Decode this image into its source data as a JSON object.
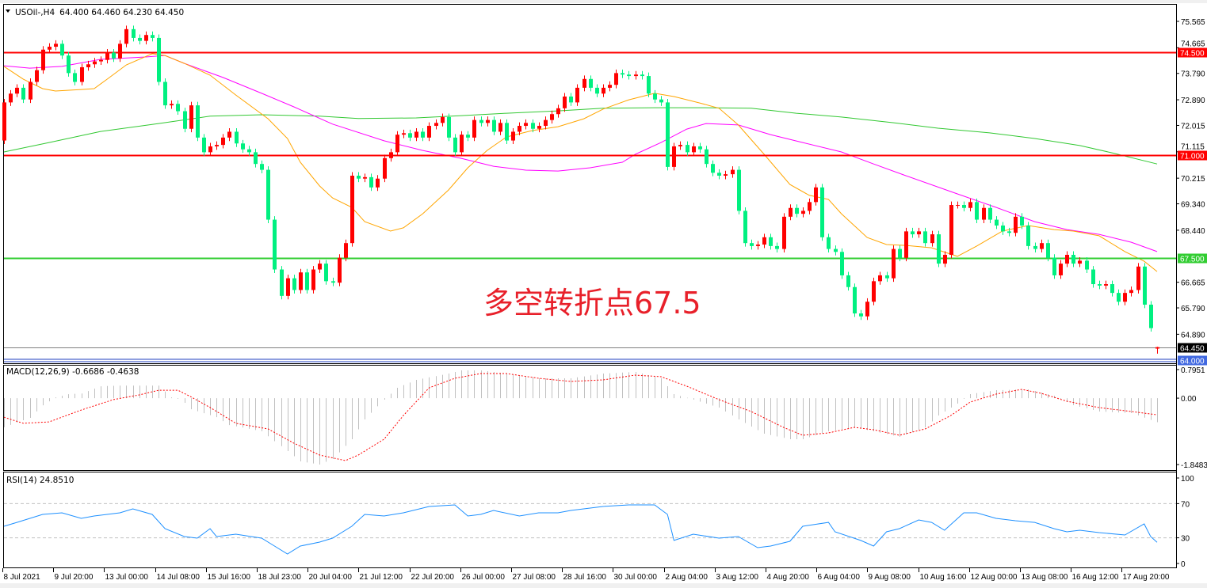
{
  "header": {
    "symbol": "USOil-,H4",
    "ohlc": "64.400 64.460 64.230 64.450"
  },
  "annotation": "多空转折点67.5",
  "colors": {
    "up": "#ff0000",
    "down": "#00f080",
    "ma_fast": "#ffa500",
    "ma_mid": "#ff00ff",
    "ma_slow": "#32c832",
    "macd_hist": "#c0c0c0",
    "macd_signal": "#ff0000",
    "rsi": "#1e90ff"
  },
  "price_axis": {
    "ticks": [
      "75.565",
      "74.665",
      "73.790",
      "72.890",
      "72.015",
      "71.115",
      "70.215",
      "69.340",
      "68.440",
      "66.665",
      "65.790",
      "64.890"
    ]
  },
  "levels": [
    {
      "price": 74.5,
      "label": "74.500",
      "color": "#ff0000"
    },
    {
      "price": 71.0,
      "label": "71.000",
      "color": "#ff0000"
    },
    {
      "price": 67.5,
      "label": "67.500",
      "color": "#32cd32"
    },
    {
      "price": 64.45,
      "label": "64.450",
      "color": "#000000",
      "line": "#808080"
    },
    {
      "price": 64.0,
      "label": "64.000",
      "color": "#4169e1"
    }
  ],
  "macd": {
    "label": "MACD(12,26,9) -0.6686 -0.4638",
    "ticks": [
      "0.7951",
      "0.00",
      "-1.8483"
    ]
  },
  "rsi": {
    "label": "RSI(14) 24.8510",
    "ticks": [
      "100",
      "70",
      "30",
      "0"
    ],
    "levels": [
      70,
      30
    ]
  },
  "time_axis": [
    "8 Jul 2021",
    "9 Jul 20:00",
    "13 Jul 00:00",
    "14 Jul 08:00",
    "15 Jul 16:00",
    "18 Jul 23:00",
    "20 Jul 04:00",
    "21 Jul 12:00",
    "22 Jul 20:00",
    "26 Jul 00:00",
    "27 Jul 08:00",
    "28 Jul 16:00",
    "30 Jul 00:00",
    "2 Aug 04:00",
    "3 Aug 12:00",
    "4 Aug 20:00",
    "6 Aug 04:00",
    "9 Aug 08:00",
    "10 Aug 16:00",
    "12 Aug 00:00",
    "13 Aug 08:00",
    "16 Aug 12:00",
    "17 Aug 20:00"
  ],
  "chart_data": {
    "type": "candlestick",
    "timeframe": "H4",
    "ylim": [
      63.9,
      75.9
    ],
    "first_open": 71.5,
    "last_bar": {
      "open": 64.4,
      "high": 64.46,
      "low": 64.23,
      "close": 64.45
    },
    "closes": [
      72.8,
      73.1,
      73.3,
      72.9,
      73.5,
      73.9,
      74.6,
      74.7,
      74.8,
      74.4,
      73.8,
      73.5,
      74.0,
      74.1,
      74.2,
      74.25,
      74.5,
      74.3,
      74.8,
      75.3,
      75.0,
      74.9,
      75.1,
      75.0,
      73.5,
      72.7,
      72.75,
      72.5,
      71.9,
      72.7,
      71.6,
      71.1,
      71.3,
      71.35,
      71.6,
      71.8,
      71.4,
      71.2,
      71.1,
      70.7,
      70.5,
      68.8,
      67.1,
      66.2,
      66.8,
      66.4,
      67.0,
      66.4,
      67.1,
      67.3,
      66.7,
      66.65,
      67.5,
      68.0,
      70.3,
      70.2,
      70.25,
      69.9,
      70.2,
      70.9,
      71.1,
      71.7,
      71.75,
      71.6,
      71.8,
      71.6,
      72.0,
      72.1,
      72.3,
      71.6,
      71.1,
      71.7,
      71.6,
      72.2,
      72.1,
      72.2,
      71.8,
      72.1,
      71.5,
      71.8,
      72.0,
      72.1,
      71.9,
      72.0,
      72.2,
      72.4,
      72.6,
      73.0,
      72.8,
      73.3,
      73.6,
      73.3,
      73.1,
      73.3,
      73.4,
      73.8,
      73.75,
      73.7,
      73.75,
      73.7,
      73.1,
      72.9,
      72.8,
      70.6,
      71.3,
      71.35,
      71.1,
      71.3,
      71.2,
      70.7,
      70.4,
      70.3,
      70.35,
      70.5,
      69.1,
      68.0,
      67.9,
      67.95,
      68.2,
      67.9,
      67.8,
      68.9,
      69.2,
      69.0,
      69.1,
      69.4,
      69.9,
      68.2,
      67.8,
      67.7,
      66.9,
      66.5,
      65.6,
      65.5,
      66.0,
      66.7,
      66.9,
      66.8,
      67.8,
      67.5,
      68.4,
      68.3,
      68.4,
      68.0,
      68.3,
      67.3,
      67.6,
      69.3,
      69.3,
      69.2,
      69.4,
      68.8,
      69.2,
      68.8,
      68.6,
      68.4,
      68.35,
      68.9,
      68.6,
      67.9,
      67.8,
      68.0,
      67.5,
      66.9,
      67.3,
      67.6,
      67.3,
      67.4,
      67.1,
      66.6,
      66.55,
      66.6,
      66.3,
      66.0,
      66.3,
      66.4,
      67.2,
      65.9,
      65.1,
      64.45
    ],
    "ma_fast": [
      [
        0,
        74.03
      ],
      [
        3,
        73.59
      ],
      [
        6,
        73.27
      ],
      [
        8,
        73.19
      ],
      [
        12,
        73.24
      ],
      [
        14,
        73.27
      ],
      [
        16,
        73.59
      ],
      [
        19,
        74.08
      ],
      [
        23,
        74.46
      ],
      [
        25,
        74.4
      ],
      [
        28,
        74.13
      ],
      [
        32,
        73.73
      ],
      [
        36,
        73.05
      ],
      [
        41,
        72.24
      ],
      [
        44,
        71.57
      ],
      [
        46,
        70.76
      ],
      [
        49,
        69.95
      ],
      [
        51,
        69.54
      ],
      [
        54,
        69.22
      ],
      [
        56,
        68.73
      ],
      [
        60,
        68.41
      ],
      [
        62,
        68.52
      ],
      [
        65,
        69.0
      ],
      [
        69,
        69.81
      ],
      [
        72,
        70.57
      ],
      [
        75,
        71.16
      ],
      [
        78,
        71.62
      ],
      [
        82,
        71.84
      ],
      [
        86,
        71.97
      ],
      [
        90,
        72.24
      ],
      [
        93,
        72.57
      ],
      [
        97,
        72.89
      ],
      [
        101,
        73.11
      ],
      [
        104,
        73.0
      ],
      [
        108,
        72.78
      ],
      [
        111,
        72.6
      ],
      [
        114,
        72.03
      ],
      [
        118,
        71.03
      ],
      [
        122,
        70.0
      ],
      [
        125,
        69.63
      ],
      [
        128,
        69.49
      ],
      [
        130,
        69.0
      ],
      [
        134,
        68.19
      ],
      [
        137,
        67.95
      ],
      [
        140,
        67.92
      ],
      [
        144,
        67.84
      ],
      [
        148,
        67.55
      ],
      [
        151,
        67.9
      ],
      [
        155,
        68.41
      ],
      [
        159,
        68.6
      ],
      [
        163,
        68.46
      ],
      [
        166,
        68.41
      ],
      [
        170,
        68.25
      ],
      [
        174,
        67.71
      ],
      [
        177,
        67.38
      ],
      [
        179,
        67.03
      ]
    ],
    "ma_mid": [
      [
        0,
        74.05
      ],
      [
        4,
        73.97
      ],
      [
        9,
        74.03
      ],
      [
        15,
        74.27
      ],
      [
        22,
        74.35
      ],
      [
        25,
        74.4
      ],
      [
        28,
        74.13
      ],
      [
        34,
        73.65
      ],
      [
        40,
        73.11
      ],
      [
        45,
        72.65
      ],
      [
        51,
        72.06
      ],
      [
        59,
        71.49
      ],
      [
        65,
        71.16
      ],
      [
        71,
        70.89
      ],
      [
        76,
        70.62
      ],
      [
        81,
        70.49
      ],
      [
        86,
        70.46
      ],
      [
        91,
        70.57
      ],
      [
        96,
        70.76
      ],
      [
        98,
        71.03
      ],
      [
        102,
        71.43
      ],
      [
        106,
        71.89
      ],
      [
        109,
        72.08
      ],
      [
        114,
        72.03
      ],
      [
        119,
        71.7
      ],
      [
        124,
        71.43
      ],
      [
        130,
        71.11
      ],
      [
        135,
        70.7
      ],
      [
        140,
        70.3
      ],
      [
        148,
        69.68
      ],
      [
        154,
        69.22
      ],
      [
        160,
        68.73
      ],
      [
        165,
        68.46
      ],
      [
        170,
        68.3
      ],
      [
        175,
        68.03
      ],
      [
        179,
        67.71
      ]
    ],
    "ma_slow": [
      [
        0,
        71.11
      ],
      [
        7,
        71.43
      ],
      [
        15,
        71.81
      ],
      [
        24,
        72.08
      ],
      [
        32,
        72.33
      ],
      [
        40,
        72.38
      ],
      [
        49,
        72.33
      ],
      [
        55,
        72.25
      ],
      [
        64,
        72.27
      ],
      [
        71,
        72.35
      ],
      [
        78,
        72.43
      ],
      [
        86,
        72.51
      ],
      [
        93,
        72.6
      ],
      [
        101,
        72.62
      ],
      [
        108,
        72.62
      ],
      [
        116,
        72.6
      ],
      [
        123,
        72.43
      ],
      [
        130,
        72.3
      ],
      [
        138,
        72.11
      ],
      [
        145,
        71.92
      ],
      [
        153,
        71.76
      ],
      [
        160,
        71.57
      ],
      [
        167,
        71.33
      ],
      [
        172,
        71.08
      ],
      [
        179,
        70.7
      ]
    ],
    "macd_ylim": [
      -1.8483,
      0.7951
    ],
    "macd_main": [
      [
        0,
        -0.81
      ],
      [
        4,
        -0.55
      ],
      [
        5,
        -0.37
      ],
      [
        6,
        -0.2
      ],
      [
        7,
        -0.09
      ],
      [
        8,
        0.02
      ],
      [
        10,
        0.11
      ],
      [
        12,
        0.13
      ],
      [
        15,
        0.33
      ],
      [
        18,
        0.35
      ],
      [
        24,
        0.35
      ],
      [
        26,
        0.02
      ],
      [
        27,
        -0.02
      ],
      [
        28,
        -0.13
      ],
      [
        29,
        -0.31
      ],
      [
        31,
        -0.42
      ],
      [
        33,
        -0.53
      ],
      [
        35,
        -0.75
      ],
      [
        40,
        -0.923
      ],
      [
        44,
        -1.474
      ],
      [
        46,
        -1.76
      ],
      [
        49,
        -1.848
      ],
      [
        51,
        -1.694
      ],
      [
        54,
        -1.144
      ],
      [
        56,
        -0.593
      ],
      [
        59,
        -0.042
      ],
      [
        61,
        0.288
      ],
      [
        64,
        0.509
      ],
      [
        69,
        0.685
      ],
      [
        71,
        0.773
      ],
      [
        74,
        0.773
      ],
      [
        78,
        0.685
      ],
      [
        83,
        0.553
      ],
      [
        88,
        0.553
      ],
      [
        93,
        0.685
      ],
      [
        98,
        0.729
      ],
      [
        102,
        0.553
      ],
      [
        104,
        0.112
      ],
      [
        107,
        -0.042
      ],
      [
        111,
        -0.262
      ],
      [
        114,
        -0.593
      ],
      [
        118,
        -0.989
      ],
      [
        122,
        -1.144
      ],
      [
        124,
        -1.144
      ],
      [
        128,
        -0.923
      ],
      [
        132,
        -0.813
      ],
      [
        135,
        -0.923
      ],
      [
        139,
        -1.077
      ],
      [
        143,
        -0.813
      ],
      [
        145,
        -0.483
      ],
      [
        148,
        -0.152
      ],
      [
        150,
        0.112
      ],
      [
        154,
        0.222
      ],
      [
        159,
        0.244
      ],
      [
        163,
        0.068
      ],
      [
        166,
        -0.196
      ],
      [
        170,
        -0.373
      ],
      [
        175,
        -0.417
      ],
      [
        179,
        -0.6686
      ]
    ],
    "macd_signal": [
      [
        0,
        -0.53
      ],
      [
        3,
        -0.7
      ],
      [
        7,
        -0.66
      ],
      [
        12,
        -0.33
      ],
      [
        17,
        -0.04
      ],
      [
        21,
        0.09
      ],
      [
        24,
        0.22
      ],
      [
        27,
        0.22
      ],
      [
        29,
        0.04
      ],
      [
        32,
        -0.26
      ],
      [
        34,
        -0.48
      ],
      [
        36,
        -0.7
      ],
      [
        41,
        -0.857
      ],
      [
        45,
        -1.254
      ],
      [
        49,
        -1.584
      ],
      [
        53,
        -1.738
      ],
      [
        55,
        -1.584
      ],
      [
        59,
        -1.144
      ],
      [
        62,
        -0.483
      ],
      [
        66,
        0.288
      ],
      [
        70,
        0.553
      ],
      [
        74,
        0.685
      ],
      [
        78,
        0.685
      ],
      [
        83,
        0.553
      ],
      [
        88,
        0.465
      ],
      [
        93,
        0.509
      ],
      [
        98,
        0.641
      ],
      [
        102,
        0.597
      ],
      [
        106,
        0.333
      ],
      [
        111,
        -0.042
      ],
      [
        116,
        -0.373
      ],
      [
        121,
        -0.813
      ],
      [
        124,
        -1.033
      ],
      [
        128,
        -0.967
      ],
      [
        132,
        -0.813
      ],
      [
        135,
        -0.879
      ],
      [
        139,
        -1.033
      ],
      [
        143,
        -0.857
      ],
      [
        147,
        -0.483
      ],
      [
        150,
        -0.108
      ],
      [
        154,
        0.112
      ],
      [
        158,
        0.244
      ],
      [
        161,
        0.134
      ],
      [
        165,
        -0.086
      ],
      [
        170,
        -0.262
      ],
      [
        175,
        -0.373
      ],
      [
        179,
        -0.4638
      ]
    ],
    "rsi_values": [
      [
        0,
        43.5
      ],
      [
        2,
        48.1
      ],
      [
        6,
        57.4
      ],
      [
        9,
        59.3
      ],
      [
        12,
        52.8
      ],
      [
        14,
        55.6
      ],
      [
        18,
        59.3
      ],
      [
        20,
        63.9
      ],
      [
        23,
        57.4
      ],
      [
        25,
        40.7
      ],
      [
        28,
        31.5
      ],
      [
        30,
        29.6
      ],
      [
        32,
        40.7
      ],
      [
        33,
        31.5
      ],
      [
        36,
        34.3
      ],
      [
        40,
        29.6
      ],
      [
        42,
        20.4
      ],
      [
        44,
        11.1
      ],
      [
        46,
        20.4
      ],
      [
        49,
        25
      ],
      [
        51,
        29.6
      ],
      [
        54,
        43.5
      ],
      [
        56,
        57.4
      ],
      [
        59,
        55.6
      ],
      [
        62,
        59.3
      ],
      [
        66,
        66.7
      ],
      [
        70,
        68.5
      ],
      [
        72,
        55.6
      ],
      [
        74,
        57.4
      ],
      [
        76,
        62
      ],
      [
        80,
        55.6
      ],
      [
        83,
        59.3
      ],
      [
        86,
        59.3
      ],
      [
        88,
        62
      ],
      [
        93,
        66.7
      ],
      [
        97,
        68.5
      ],
      [
        101,
        68.5
      ],
      [
        103,
        57.4
      ],
      [
        104,
        26.9
      ],
      [
        107,
        34.3
      ],
      [
        111,
        29.6
      ],
      [
        114,
        31.5
      ],
      [
        117,
        18.5
      ],
      [
        119,
        20.4
      ],
      [
        122,
        25.9
      ],
      [
        124,
        43.5
      ],
      [
        128,
        48.1
      ],
      [
        129,
        37
      ],
      [
        133,
        26.9
      ],
      [
        135,
        20.4
      ],
      [
        137,
        37
      ],
      [
        139,
        40.7
      ],
      [
        142,
        50.9
      ],
      [
        144,
        48.1
      ],
      [
        146,
        38.9
      ],
      [
        149,
        59.3
      ],
      [
        151,
        59.3
      ],
      [
        154,
        52.8
      ],
      [
        157,
        50
      ],
      [
        160,
        48.1
      ],
      [
        163,
        40.7
      ],
      [
        165,
        37
      ],
      [
        167,
        38.9
      ],
      [
        170,
        36.1
      ],
      [
        174,
        33.3
      ],
      [
        177,
        46.3
      ],
      [
        178,
        31.5
      ],
      [
        179,
        24.85
      ]
    ]
  }
}
